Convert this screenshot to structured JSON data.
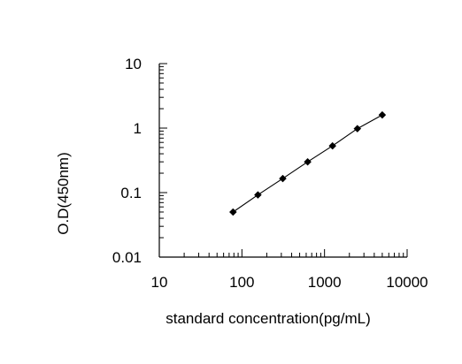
{
  "chart_data": {
    "type": "scatter",
    "title": "",
    "xlabel": "standard concentration(pg/mL)",
    "ylabel": "O.D(450nm)",
    "xscale": "log",
    "yscale": "log",
    "xlim": [
      10,
      10000
    ],
    "ylim": [
      0.01,
      10
    ],
    "x_ticks": [
      {
        "value": 10,
        "label": "10"
      },
      {
        "value": 100,
        "label": "100"
      },
      {
        "value": 1000,
        "label": "1000"
      },
      {
        "value": 10000,
        "label": "10000"
      }
    ],
    "y_ticks": [
      {
        "value": 0.01,
        "label": "0.01"
      },
      {
        "value": 0.1,
        "label": "0.1"
      },
      {
        "value": 1,
        "label": "1"
      },
      {
        "value": 10,
        "label": "10"
      }
    ],
    "grid": false,
    "series": [
      {
        "color": "#000000",
        "marker": "diamond",
        "line": true,
        "x": [
          78,
          156,
          312,
          625,
          1250,
          2500,
          5000
        ],
        "y": [
          0.05,
          0.092,
          0.165,
          0.3,
          0.53,
          0.98,
          1.6
        ]
      }
    ]
  }
}
